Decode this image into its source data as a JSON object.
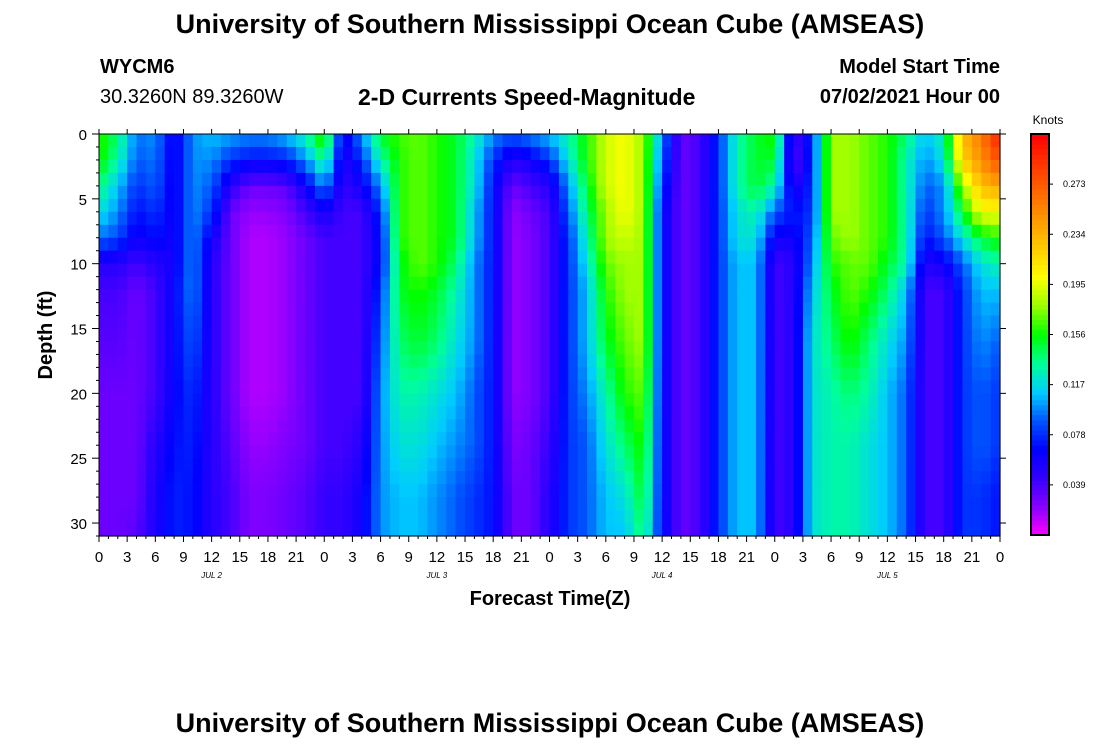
{
  "header": {
    "title": "University of Southern Mississippi Ocean Cube (AMSEAS)",
    "station": "WYCM6",
    "coords": "30.3260N  89.3260W",
    "plot_title": "2-D Currents Speed-Magnitude",
    "model_start_label": "Model Start Time",
    "model_start_value": "07/02/2021 Hour 00"
  },
  "footer": {
    "title": "University of Southern Mississippi Ocean Cube (AMSEAS)"
  },
  "colors": {
    "scale": [
      "#ff00ff",
      "#8800ff",
      "#3300ff",
      "#0000ff",
      "#0055ff",
      "#00ccff",
      "#00ff99",
      "#00ff00",
      "#99ff00",
      "#ffff00",
      "#ffcc00",
      "#ff9900",
      "#ff6600",
      "#ff3300",
      "#ff0000"
    ]
  },
  "chart_data": {
    "type": "heatmap",
    "xlabel": "Forecast Time(Z)",
    "ylabel": "Depth (ft)",
    "x_tick_labels": [
      "0",
      "3",
      "6",
      "9",
      "12",
      "15",
      "18",
      "21",
      "0",
      "3",
      "6",
      "9",
      "12",
      "15",
      "18",
      "21",
      "0",
      "3",
      "6",
      "9",
      "12",
      "15",
      "18",
      "21",
      "0",
      "3",
      "6",
      "9",
      "12",
      "15",
      "18",
      "21",
      "0"
    ],
    "day_labels": [
      "JUL 2",
      "JUL 3",
      "JUL 4",
      "JUL 5"
    ],
    "xlim": [
      0,
      96
    ],
    "x_units": "forecast hour",
    "y_tick_labels": [
      "0",
      "5",
      "10",
      "15",
      "20",
      "25",
      "30"
    ],
    "ylim": [
      0,
      31
    ],
    "colorbar": {
      "label": "Knots",
      "ticks": [
        "0.273",
        "0.234",
        "0.195",
        "0.156",
        "0.117",
        "0.078",
        "0.039"
      ],
      "range": [
        0,
        0.312
      ]
    },
    "profile_depths_ft": [
      0,
      2,
      4,
      6,
      8,
      10,
      12,
      16,
      20,
      24,
      28,
      31
    ],
    "profile_hours": [
      0,
      2,
      4,
      6,
      8,
      10,
      12,
      14,
      16,
      18,
      20,
      22,
      24,
      26,
      28,
      30,
      32,
      34,
      36,
      38,
      40,
      42,
      44,
      46,
      48,
      50,
      52,
      54,
      56,
      58,
      60,
      62,
      64,
      66,
      68,
      70,
      72,
      74,
      76,
      78,
      80,
      82,
      84,
      86,
      88,
      90,
      92,
      94,
      96
    ],
    "speed_knots": [
      [
        0.165,
        0.16,
        0.14,
        0.12,
        0.095,
        0.05,
        0.04,
        0.035,
        0.03,
        0.03,
        0.03,
        0.03
      ],
      [
        0.14,
        0.13,
        0.11,
        0.1,
        0.085,
        0.05,
        0.04,
        0.035,
        0.03,
        0.03,
        0.03,
        0.03
      ],
      [
        0.095,
        0.09,
        0.08,
        0.07,
        0.06,
        0.04,
        0.03,
        0.03,
        0.03,
        0.03,
        0.03,
        0.035
      ],
      [
        0.1,
        0.095,
        0.09,
        0.08,
        0.07,
        0.05,
        0.04,
        0.04,
        0.04,
        0.05,
        0.055,
        0.055
      ],
      [
        0.06,
        0.06,
        0.06,
        0.06,
        0.06,
        0.06,
        0.065,
        0.065,
        0.065,
        0.07,
        0.075,
        0.075
      ],
      [
        0.1,
        0.1,
        0.1,
        0.1,
        0.1,
        0.1,
        0.1,
        0.09,
        0.08,
        0.075,
        0.07,
        0.07
      ],
      [
        0.11,
        0.1,
        0.09,
        0.08,
        0.06,
        0.05,
        0.05,
        0.05,
        0.05,
        0.05,
        0.05,
        0.05
      ],
      [
        0.105,
        0.08,
        0.05,
        0.03,
        0.03,
        0.03,
        0.03,
        0.03,
        0.03,
        0.035,
        0.04,
        0.04
      ],
      [
        0.1,
        0.07,
        0.03,
        0.02,
        0.015,
        0.015,
        0.015,
        0.015,
        0.015,
        0.02,
        0.025,
        0.025
      ],
      [
        0.1,
        0.07,
        0.03,
        0.02,
        0.015,
        0.015,
        0.015,
        0.015,
        0.015,
        0.02,
        0.025,
        0.025
      ],
      [
        0.11,
        0.075,
        0.035,
        0.025,
        0.02,
        0.02,
        0.02,
        0.02,
        0.02,
        0.025,
        0.03,
        0.03
      ],
      [
        0.13,
        0.1,
        0.06,
        0.04,
        0.03,
        0.03,
        0.03,
        0.03,
        0.03,
        0.03,
        0.035,
        0.035
      ],
      [
        0.17,
        0.14,
        0.1,
        0.06,
        0.04,
        0.04,
        0.04,
        0.04,
        0.04,
        0.04,
        0.045,
        0.045
      ],
      [
        0.06,
        0.05,
        0.045,
        0.04,
        0.04,
        0.04,
        0.04,
        0.04,
        0.04,
        0.04,
        0.045,
        0.045
      ],
      [
        0.1,
        0.08,
        0.06,
        0.04,
        0.04,
        0.04,
        0.04,
        0.04,
        0.04,
        0.05,
        0.06,
        0.06
      ],
      [
        0.15,
        0.13,
        0.1,
        0.08,
        0.07,
        0.07,
        0.08,
        0.09,
        0.1,
        0.1,
        0.1,
        0.1
      ],
      [
        0.165,
        0.16,
        0.16,
        0.16,
        0.16,
        0.15,
        0.15,
        0.14,
        0.13,
        0.12,
        0.11,
        0.11
      ],
      [
        0.17,
        0.17,
        0.17,
        0.17,
        0.17,
        0.17,
        0.16,
        0.15,
        0.13,
        0.12,
        0.11,
        0.11
      ],
      [
        0.16,
        0.16,
        0.16,
        0.16,
        0.16,
        0.16,
        0.15,
        0.14,
        0.12,
        0.11,
        0.1,
        0.1
      ],
      [
        0.15,
        0.15,
        0.15,
        0.15,
        0.15,
        0.14,
        0.13,
        0.12,
        0.11,
        0.1,
        0.09,
        0.09
      ],
      [
        0.13,
        0.12,
        0.12,
        0.11,
        0.11,
        0.1,
        0.1,
        0.1,
        0.09,
        0.09,
        0.08,
        0.08
      ],
      [
        0.1,
        0.08,
        0.07,
        0.07,
        0.07,
        0.07,
        0.07,
        0.07,
        0.07,
        0.07,
        0.07,
        0.07
      ],
      [
        0.09,
        0.05,
        0.03,
        0.02,
        0.02,
        0.02,
        0.02,
        0.02,
        0.02,
        0.025,
        0.03,
        0.03
      ],
      [
        0.1,
        0.06,
        0.04,
        0.03,
        0.025,
        0.025,
        0.025,
        0.025,
        0.025,
        0.03,
        0.03,
        0.03
      ],
      [
        0.11,
        0.08,
        0.05,
        0.04,
        0.04,
        0.04,
        0.04,
        0.04,
        0.04,
        0.045,
        0.05,
        0.05
      ],
      [
        0.13,
        0.12,
        0.1,
        0.09,
        0.08,
        0.08,
        0.08,
        0.08,
        0.08,
        0.08,
        0.08,
        0.08
      ],
      [
        0.16,
        0.16,
        0.15,
        0.14,
        0.13,
        0.12,
        0.11,
        0.11,
        0.1,
        0.09,
        0.09,
        0.09
      ],
      [
        0.19,
        0.19,
        0.19,
        0.18,
        0.18,
        0.17,
        0.16,
        0.15,
        0.13,
        0.12,
        0.11,
        0.11
      ],
      [
        0.2,
        0.2,
        0.2,
        0.2,
        0.19,
        0.18,
        0.18,
        0.17,
        0.16,
        0.14,
        0.12,
        0.11
      ],
      [
        0.18,
        0.18,
        0.18,
        0.18,
        0.18,
        0.18,
        0.18,
        0.18,
        0.17,
        0.16,
        0.15,
        0.14
      ],
      [
        0.1,
        0.09,
        0.08,
        0.07,
        0.07,
        0.07,
        0.07,
        0.07,
        0.07,
        0.07,
        0.07,
        0.07
      ],
      [
        0.03,
        0.03,
        0.03,
        0.03,
        0.03,
        0.03,
        0.03,
        0.03,
        0.03,
        0.03,
        0.03,
        0.03
      ],
      [
        0.04,
        0.04,
        0.04,
        0.04,
        0.04,
        0.04,
        0.04,
        0.04,
        0.04,
        0.04,
        0.04,
        0.04
      ],
      [
        0.08,
        0.08,
        0.08,
        0.08,
        0.08,
        0.08,
        0.08,
        0.08,
        0.08,
        0.08,
        0.08,
        0.08
      ],
      [
        0.13,
        0.13,
        0.13,
        0.12,
        0.12,
        0.11,
        0.11,
        0.11,
        0.11,
        0.11,
        0.11,
        0.11
      ],
      [
        0.15,
        0.15,
        0.15,
        0.13,
        0.12,
        0.11,
        0.11,
        0.11,
        0.11,
        0.11,
        0.11,
        0.11
      ],
      [
        0.16,
        0.15,
        0.13,
        0.09,
        0.06,
        0.04,
        0.04,
        0.04,
        0.04,
        0.04,
        0.04,
        0.04
      ],
      [
        0.04,
        0.03,
        0.05,
        0.07,
        0.06,
        0.05,
        0.05,
        0.05,
        0.05,
        0.05,
        0.05,
        0.05
      ],
      [
        0.08,
        0.08,
        0.08,
        0.08,
        0.09,
        0.1,
        0.11,
        0.12,
        0.12,
        0.12,
        0.12,
        0.12
      ],
      [
        0.18,
        0.18,
        0.18,
        0.18,
        0.17,
        0.16,
        0.15,
        0.14,
        0.13,
        0.13,
        0.13,
        0.13
      ],
      [
        0.18,
        0.18,
        0.18,
        0.18,
        0.18,
        0.17,
        0.17,
        0.16,
        0.14,
        0.13,
        0.13,
        0.13
      ],
      [
        0.17,
        0.17,
        0.17,
        0.17,
        0.17,
        0.17,
        0.16,
        0.14,
        0.13,
        0.12,
        0.12,
        0.12
      ],
      [
        0.16,
        0.16,
        0.16,
        0.16,
        0.16,
        0.15,
        0.14,
        0.12,
        0.11,
        0.11,
        0.11,
        0.11
      ],
      [
        0.14,
        0.13,
        0.13,
        0.13,
        0.13,
        0.13,
        0.11,
        0.1,
        0.09,
        0.09,
        0.09,
        0.09
      ],
      [
        0.11,
        0.1,
        0.09,
        0.08,
        0.07,
        0.05,
        0.04,
        0.04,
        0.04,
        0.04,
        0.04,
        0.04
      ],
      [
        0.13,
        0.12,
        0.1,
        0.1,
        0.09,
        0.06,
        0.04,
        0.04,
        0.04,
        0.04,
        0.04,
        0.04
      ],
      [
        0.23,
        0.22,
        0.18,
        0.15,
        0.12,
        0.09,
        0.08,
        0.08,
        0.08,
        0.08,
        0.08,
        0.08
      ],
      [
        0.26,
        0.25,
        0.23,
        0.2,
        0.15,
        0.12,
        0.11,
        0.1,
        0.09,
        0.09,
        0.08,
        0.08
      ],
      [
        0.3,
        0.28,
        0.24,
        0.2,
        0.16,
        0.13,
        0.11,
        0.09,
        0.08,
        0.08,
        0.07,
        0.07
      ]
    ]
  }
}
